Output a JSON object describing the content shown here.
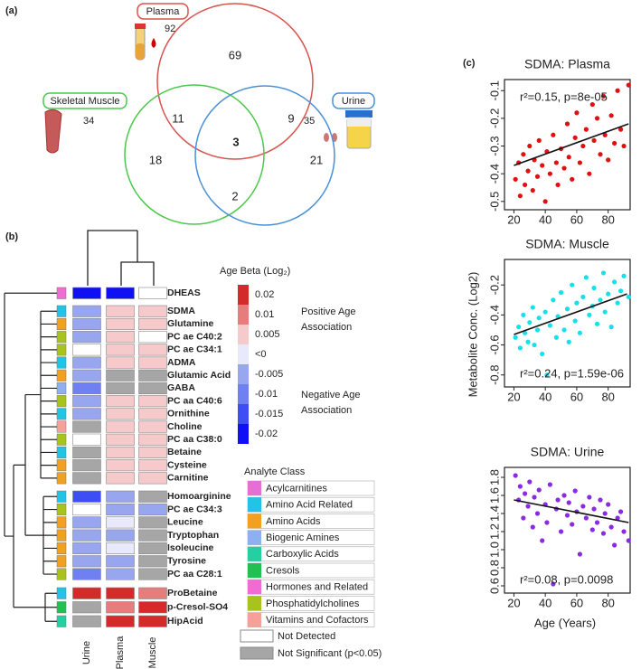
{
  "panel_a": {
    "label": "(a)",
    "sets": [
      {
        "name": "Plasma",
        "total": 92,
        "color": "#d9534f"
      },
      {
        "name": "Skeletal Muscle",
        "total": 34,
        "color": "#4cc84c"
      },
      {
        "name": "Urine",
        "total": 35,
        "color": "#4a90d9"
      }
    ],
    "regions": [
      69,
      11,
      9,
      3,
      18,
      2,
      21
    ]
  },
  "panel_b": {
    "label": "(b)",
    "columns": [
      "Urine",
      "Plasma",
      "Muscle"
    ],
    "rows": [
      {
        "label": "DHEAS",
        "class": "Hormones and Related",
        "cells": [
          "#1010f5",
          "#1010f5",
          "#ffffff"
        ]
      },
      {
        "label": "SDMA",
        "class": "Amino Acid Related",
        "cells": [
          "#98a6f0",
          "#f6caca",
          "#f6caca"
        ]
      },
      {
        "label": "Glutamine",
        "class": "Amino Acids",
        "cells": [
          "#98a6f0",
          "#f6caca",
          "#f6caca"
        ]
      },
      {
        "label": "PC ae C40:2",
        "class": "Phosphatidylcholines",
        "cells": [
          "#98a6f0",
          "#f6caca",
          "#ffffff"
        ]
      },
      {
        "label": "PC ae C34:1",
        "class": "Phosphatidylcholines",
        "cells": [
          "#ffffff",
          "#f6caca",
          "#f6caca"
        ]
      },
      {
        "label": "ADMA",
        "class": "Amino Acid Related",
        "cells": [
          "#98a6f0",
          "#f6caca",
          "#f6caca"
        ]
      },
      {
        "label": "Glutamic Acid",
        "class": "Amino Acids",
        "cells": [
          "#98a6f0",
          "#a6a6a6",
          "#a6a6a6"
        ]
      },
      {
        "label": "GABA",
        "class": "Biogenic Amines",
        "cells": [
          "#6f80f2",
          "#a6a6a6",
          "#a6a6a6"
        ]
      },
      {
        "label": "PC aa C40:6",
        "class": "Phosphatidylcholines",
        "cells": [
          "#98a6f0",
          "#f6caca",
          "#f6caca"
        ]
      },
      {
        "label": "Ornithine",
        "class": "Amino Acid Related",
        "cells": [
          "#98a6f0",
          "#f6caca",
          "#f6caca"
        ]
      },
      {
        "label": "Choline",
        "class": "Vitamins and Cofactors",
        "cells": [
          "#a6a6a6",
          "#f6caca",
          "#f6caca"
        ]
      },
      {
        "label": "PC aa C38:0",
        "class": "Phosphatidylcholines",
        "cells": [
          "#ffffff",
          "#f6caca",
          "#f6caca"
        ]
      },
      {
        "label": "Betaine",
        "class": "Amino Acid Related",
        "cells": [
          "#a6a6a6",
          "#f6caca",
          "#f6caca"
        ]
      },
      {
        "label": "Cysteine",
        "class": "Amino Acids",
        "cells": [
          "#a6a6a6",
          "#f6caca",
          "#f6caca"
        ]
      },
      {
        "label": "Carnitine",
        "class": "Amino Acids",
        "cells": [
          "#a6a6a6",
          "#f6caca",
          "#f6caca"
        ]
      },
      {
        "label": "Homoarginine",
        "class": "Amino Acid Related",
        "cells": [
          "#3d4ff4",
          "#98a6f0",
          "#a6a6a6"
        ]
      },
      {
        "label": "PC ae C34:3",
        "class": "Phosphatidylcholines",
        "cells": [
          "#ffffff",
          "#98a6f0",
          "#98a6f0"
        ]
      },
      {
        "label": "Leucine",
        "class": "Amino Acids",
        "cells": [
          "#98a6f0",
          "#e8eafb",
          "#a6a6a6"
        ]
      },
      {
        "label": "Tryptophan",
        "class": "Amino Acids",
        "cells": [
          "#98a6f0",
          "#98a6f0",
          "#a6a6a6"
        ]
      },
      {
        "label": "Isoleucine",
        "class": "Amino Acids",
        "cells": [
          "#98a6f0",
          "#e8eafb",
          "#a6a6a6"
        ]
      },
      {
        "label": "Tyrosine",
        "class": "Amino Acids",
        "cells": [
          "#98a6f0",
          "#98a6f0",
          "#a6a6a6"
        ]
      },
      {
        "label": "PC aa C28:1",
        "class": "Phosphatidylcholines",
        "cells": [
          "#6f80f2",
          "#98a6f0",
          "#a6a6a6"
        ]
      },
      {
        "label": "ProBetaine",
        "class": "Amino Acid Related",
        "cells": [
          "#d42a2a",
          "#d42a2a",
          "#e67c7c"
        ]
      },
      {
        "label": "p-Cresol-SO4",
        "class": "Cresols",
        "cells": [
          "#a6a6a6",
          "#e67c7c",
          "#d42a2a"
        ]
      },
      {
        "label": "HipAcid",
        "class": "Carboxylic Acids",
        "cells": [
          "#a6a6a6",
          "#d42a2a",
          "#d42a2a"
        ]
      }
    ],
    "beta_legend": {
      "title": "Age Beta (Log₂)",
      "levels": [
        {
          "label": "0.02",
          "color": "#d42a2a"
        },
        {
          "label": "0.01",
          "color": "#e67c7c"
        },
        {
          "label": "0.005",
          "color": "#f6caca"
        },
        {
          "label": "<0",
          "color": "#e8eafb"
        },
        {
          "label": "-0.005",
          "color": "#98a6f0"
        },
        {
          "label": "-0.01",
          "color": "#6f80f2"
        },
        {
          "label": "-0.015",
          "color": "#3d4ff4"
        },
        {
          "label": "-0.02",
          "color": "#1010f5"
        }
      ],
      "positive": [
        "Positive Age",
        "Association"
      ],
      "negative": [
        "Negative Age",
        "Association"
      ]
    },
    "class_legend": {
      "title": "Analyte Class",
      "classes": [
        {
          "name": "Acylcarnitines",
          "color": "#e66fd6"
        },
        {
          "name": "Amino Acid Related",
          "color": "#22c4e6"
        },
        {
          "name": "Amino Acids",
          "color": "#f2a020"
        },
        {
          "name": "Biogenic Amines",
          "color": "#8fb0ee"
        },
        {
          "name": "Carboxylic Acids",
          "color": "#24d0a2"
        },
        {
          "name": "Cresols",
          "color": "#22c050"
        },
        {
          "name": "Hormones and Related",
          "color": "#f06cd2"
        },
        {
          "name": "Phosphatidylcholines",
          "color": "#a8c41c"
        },
        {
          "name": "Vitamins and Cofactors",
          "color": "#f6a09a"
        }
      ]
    },
    "status_legend": [
      {
        "label": "Not Detected",
        "color": "#ffffff"
      },
      {
        "label": "Not Significant (p<0.05)",
        "color": "#a6a6a6"
      }
    ]
  },
  "panel_c": {
    "label": "(c)",
    "ylabel": "Metabolite  Conc. (Log2)",
    "xlabel": "Age (Years)"
  },
  "chart_data": [
    {
      "type": "scatter",
      "title": "SDMA: Plasma",
      "annotation": "r²=0.15, p=8e-05",
      "color": "#e01010",
      "xlim": [
        14,
        94
      ],
      "xticks": [
        20,
        40,
        60,
        80
      ],
      "ylim": [
        -0.53,
        -0.06
      ],
      "yticks": [
        -0.5,
        -0.4,
        -0.3,
        -0.2,
        -0.1
      ],
      "x": [
        21,
        23,
        24,
        26,
        27,
        29,
        30,
        32,
        33,
        35,
        36,
        38,
        40,
        41,
        43,
        45,
        47,
        48,
        50,
        52,
        54,
        55,
        57,
        59,
        60,
        62,
        64,
        66,
        68,
        70,
        71,
        73,
        75,
        77,
        78,
        80,
        82,
        84,
        86,
        88,
        90,
        93
      ],
      "values": [
        -0.42,
        -0.36,
        -0.48,
        -0.33,
        -0.44,
        -0.39,
        -0.3,
        -0.46,
        -0.35,
        -0.41,
        -0.28,
        -0.37,
        -0.5,
        -0.32,
        -0.4,
        -0.26,
        -0.36,
        -0.44,
        -0.31,
        -0.38,
        -0.22,
        -0.34,
        -0.42,
        -0.27,
        -0.18,
        -0.36,
        -0.3,
        -0.24,
        -0.4,
        -0.15,
        -0.28,
        -0.2,
        -0.33,
        -0.12,
        -0.26,
        -0.35,
        -0.19,
        -0.29,
        -0.1,
        -0.24,
        -0.3,
        -0.08
      ],
      "trend": {
        "x": [
          20,
          93
        ],
        "values": [
          -0.37,
          -0.22
        ]
      }
    },
    {
      "type": "scatter",
      "title": "SDMA: Muscle",
      "annotation": "r²=0.24, p=1.59e-06",
      "color": "#18e0e8",
      "xlim": [
        14,
        94
      ],
      "xticks": [
        20,
        40,
        60,
        80
      ],
      "ylim": [
        -0.88,
        -0.03
      ],
      "yticks": [
        -0.8,
        -0.6,
        -0.4,
        -0.2
      ],
      "x": [
        21,
        23,
        24,
        26,
        27,
        29,
        30,
        32,
        33,
        35,
        36,
        38,
        40,
        41,
        43,
        45,
        47,
        48,
        50,
        52,
        54,
        55,
        57,
        59,
        60,
        62,
        64,
        66,
        68,
        70,
        71,
        73,
        75,
        77,
        78,
        80,
        82,
        84,
        86,
        88,
        90,
        93
      ],
      "values": [
        -0.55,
        -0.48,
        -0.62,
        -0.4,
        -0.52,
        -0.58,
        -0.45,
        -0.35,
        -0.6,
        -0.5,
        -0.42,
        -0.66,
        -0.38,
        -0.8,
        -0.47,
        -0.3,
        -0.55,
        -0.41,
        -0.25,
        -0.5,
        -0.36,
        -0.58,
        -0.2,
        -0.44,
        -0.32,
        -0.52,
        -0.28,
        -0.15,
        -0.4,
        -0.34,
        -0.22,
        -0.46,
        -0.3,
        -0.12,
        -0.38,
        -0.26,
        -0.48,
        -0.18,
        -0.32,
        -0.24,
        -0.14,
        -0.28
      ],
      "trend": {
        "x": [
          20,
          92
        ],
        "values": [
          -0.53,
          -0.26
        ]
      }
    },
    {
      "type": "scatter",
      "title": "SDMA: Urine",
      "annotation": "r²=0.08, p=0.0098",
      "color": "#8a2be2",
      "xlim": [
        14,
        94
      ],
      "xticks": [
        20,
        40,
        60,
        80
      ],
      "ylim": [
        0.52,
        1.91
      ],
      "yticks": [
        0.6,
        0.8,
        {
          "value": 1,
          "label": "1.0"
        },
        1.2,
        1.4,
        1.6,
        1.8
      ],
      "x": [
        21,
        23,
        24,
        26,
        27,
        29,
        30,
        32,
        33,
        35,
        36,
        38,
        40,
        41,
        43,
        45,
        47,
        48,
        50,
        52,
        54,
        55,
        57,
        59,
        60,
        62,
        64,
        66,
        68,
        70,
        71,
        73,
        75,
        77,
        78,
        80,
        82,
        84,
        86,
        88,
        90,
        93
      ],
      "values": [
        1.82,
        1.55,
        1.7,
        1.35,
        1.62,
        1.48,
        1.75,
        1.25,
        1.58,
        1.4,
        1.66,
        1.1,
        1.5,
        1.3,
        1.72,
        0.62,
        1.45,
        1.55,
        1.2,
        1.6,
        1.38,
        1.52,
        1.28,
        1.65,
        1.42,
        0.95,
        1.48,
        1.35,
        1.58,
        1.22,
        1.45,
        1.3,
        1.55,
        1.18,
        1.4,
        1.5,
        1.25,
        1.05,
        1.35,
        1.42,
        1.2,
        1.1
      ],
      "trend": {
        "x": [
          20,
          93
        ],
        "values": [
          1.55,
          1.3
        ]
      }
    }
  ]
}
